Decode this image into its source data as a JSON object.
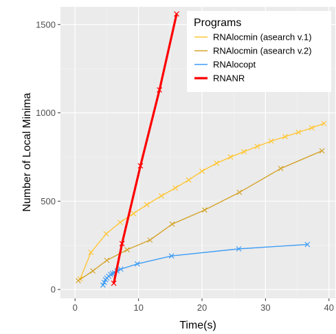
{
  "chart_data": {
    "type": "line",
    "xlabel": "Time(s)",
    "ylabel": "Number of Local Minima",
    "xlim": [
      -2.3,
      41
    ],
    "ylim": [
      -50,
      1600
    ],
    "xticks": [
      0,
      10,
      20,
      30,
      40
    ],
    "yticks": [
      0,
      500,
      1000,
      1500
    ],
    "xtick_labels": [
      "0",
      "10",
      "20",
      "30",
      "40"
    ],
    "ytick_labels": [
      "0",
      "500",
      "1000",
      "1500"
    ],
    "grid": true,
    "background": "#ebebeb",
    "legend": {
      "title": "Programs",
      "position": "top-right"
    },
    "series": [
      {
        "name": "RNAlocmin (asearch v.1)",
        "color": "#ffc633",
        "x": [
          0.8,
          2.5,
          4.9,
          7.1,
          9.2,
          11.3,
          13.6,
          15.8,
          17.9,
          20.0,
          22.3,
          24.5,
          26.6,
          28.7,
          30.9,
          33.1,
          35.2,
          37.3,
          39.2
        ],
        "y": [
          60,
          210,
          315,
          380,
          430,
          480,
          530,
          575,
          620,
          670,
          715,
          750,
          780,
          810,
          840,
          865,
          890,
          915,
          940
        ]
      },
      {
        "name": "RNAlocmin (asearch v.2)",
        "color": "#d4a32a",
        "x": [
          0.5,
          2.8,
          5.0,
          8.2,
          11.8,
          15.3,
          20.4,
          25.9,
          32.4,
          38.9
        ],
        "y": [
          50,
          105,
          165,
          225,
          280,
          370,
          450,
          550,
          685,
          785
        ]
      },
      {
        "name": "RNAlocopt",
        "color": "#3d9cf5",
        "x": [
          4.4,
          4.6,
          4.8,
          5.0,
          5.3,
          5.6,
          5.9,
          6.2,
          6.6,
          7.2,
          9.8,
          15.2,
          25.8,
          36.6
        ],
        "y": [
          25,
          40,
          55,
          65,
          75,
          85,
          90,
          95,
          105,
          115,
          145,
          190,
          230,
          255
        ]
      },
      {
        "name": "RNANR",
        "color": "#ff0000",
        "x": [
          6.1,
          7.4,
          10.3,
          13.3,
          16.0
        ],
        "y": [
          35,
          260,
          700,
          1130,
          1560
        ]
      }
    ]
  }
}
